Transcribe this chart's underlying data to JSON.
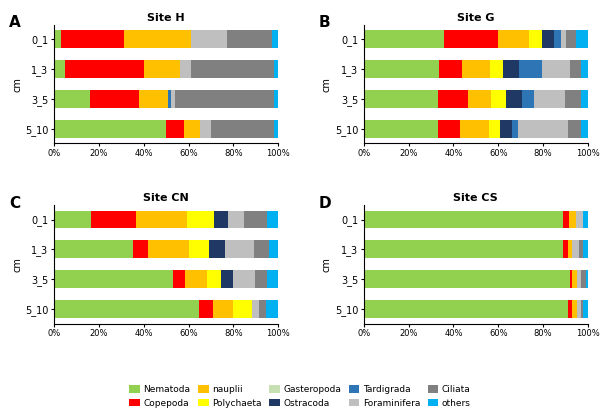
{
  "sites": [
    "Site H",
    "Site G",
    "Site CN",
    "Site CS"
  ],
  "panel_labels": [
    "A",
    "B",
    "C",
    "D"
  ],
  "depths": [
    "0_1",
    "1_3",
    "3_5",
    "5_10"
  ],
  "colors": {
    "Nematoda": "#92d050",
    "Copepoda": "#ff0000",
    "nauplii": "#ffc000",
    "Polychaeta": "#ffff00",
    "Gasteropoda": "#c6e0b4",
    "Ostracoda": "#1f3864",
    "Tardigrada": "#2e75b6",
    "Foraminifera": "#bfbfbf",
    "Ciliata": "#808080",
    "others": "#00b0f0"
  },
  "data": {
    "Site H": {
      "0_1": {
        "Nematoda": 3,
        "Copepoda": 28,
        "nauplii": 30,
        "Polychaeta": 0,
        "Gasteropoda": 0,
        "Ostracoda": 0,
        "Tardigrada": 0,
        "Foraminifera": 16,
        "Ciliata": 20,
        "others": 3
      },
      "1_3": {
        "Nematoda": 5,
        "Copepoda": 35,
        "nauplii": 16,
        "Polychaeta": 0,
        "Gasteropoda": 0,
        "Ostracoda": 0,
        "Tardigrada": 0,
        "Foraminifera": 5,
        "Ciliata": 37,
        "others": 2
      },
      "3_5": {
        "Nematoda": 16,
        "Copepoda": 22,
        "nauplii": 13,
        "Polychaeta": 0,
        "Gasteropoda": 0,
        "Ostracoda": 0,
        "Tardigrada": 1,
        "Foraminifera": 2,
        "Ciliata": 44,
        "others": 2
      },
      "5_10": {
        "Nematoda": 50,
        "Copepoda": 8,
        "nauplii": 7,
        "Polychaeta": 0,
        "Gasteropoda": 0,
        "Ostracoda": 0,
        "Tardigrada": 0,
        "Foraminifera": 5,
        "Ciliata": 28,
        "others": 2
      }
    },
    "Site G": {
      "0_1": {
        "Nematoda": 33,
        "Copepoda": 22,
        "nauplii": 13,
        "Polychaeta": 5,
        "Gasteropoda": 0,
        "Ostracoda": 5,
        "Tardigrada": 3,
        "Foraminifera": 2,
        "Ciliata": 4,
        "others": 5
      },
      "1_3": {
        "Nematoda": 33,
        "Copepoda": 10,
        "nauplii": 12,
        "Polychaeta": 6,
        "Gasteropoda": 0,
        "Ostracoda": 7,
        "Tardigrada": 10,
        "Foraminifera": 12,
        "Ciliata": 5,
        "others": 3
      },
      "3_5": {
        "Nematoda": 33,
        "Copepoda": 13,
        "nauplii": 10,
        "Polychaeta": 7,
        "Gasteropoda": 0,
        "Ostracoda": 7,
        "Tardigrada": 5,
        "Foraminifera": 14,
        "Ciliata": 7,
        "others": 3
      },
      "5_10": {
        "Nematoda": 33,
        "Copepoda": 10,
        "nauplii": 13,
        "Polychaeta": 5,
        "Gasteropoda": 0,
        "Ostracoda": 5,
        "Tardigrada": 3,
        "Foraminifera": 22,
        "Ciliata": 6,
        "others": 3
      }
    },
    "Site CN": {
      "0_1": {
        "Nematoda": 16,
        "Copepoda": 20,
        "nauplii": 22,
        "Polychaeta": 12,
        "Gasteropoda": 0,
        "Ostracoda": 6,
        "Tardigrada": 0,
        "Foraminifera": 7,
        "Ciliata": 10,
        "others": 5
      },
      "1_3": {
        "Nematoda": 35,
        "Copepoda": 7,
        "nauplii": 18,
        "Polychaeta": 9,
        "Gasteropoda": 0,
        "Ostracoda": 7,
        "Tardigrada": 0,
        "Foraminifera": 13,
        "Ciliata": 7,
        "others": 4
      },
      "3_5": {
        "Nematoda": 52,
        "Copepoda": 5,
        "nauplii": 10,
        "Polychaeta": 6,
        "Gasteropoda": 0,
        "Ostracoda": 5,
        "Tardigrada": 0,
        "Foraminifera": 10,
        "Ciliata": 5,
        "others": 5
      },
      "5_10": {
        "Nematoda": 60,
        "Copepoda": 6,
        "nauplii": 8,
        "Polychaeta": 8,
        "Gasteropoda": 0,
        "Ostracoda": 0,
        "Tardigrada": 0,
        "Foraminifera": 3,
        "Ciliata": 3,
        "others": 5
      }
    },
    "Site CS": {
      "0_1": {
        "Nematoda": 86,
        "Copepoda": 3,
        "nauplii": 3,
        "Polychaeta": 0,
        "Gasteropoda": 0,
        "Ostracoda": 0,
        "Tardigrada": 0,
        "Foraminifera": 3,
        "Ciliata": 0,
        "others": 2
      },
      "1_3": {
        "Nematoda": 88,
        "Copepoda": 2,
        "nauplii": 2,
        "Polychaeta": 0,
        "Gasteropoda": 0,
        "Ostracoda": 0,
        "Tardigrada": 0,
        "Foraminifera": 3,
        "Ciliata": 2,
        "others": 2
      },
      "3_5": {
        "Nematoda": 91,
        "Copepoda": 1,
        "nauplii": 2,
        "Polychaeta": 0,
        "Gasteropoda": 0,
        "Ostracoda": 0,
        "Tardigrada": 0,
        "Foraminifera": 2,
        "Ciliata": 2,
        "others": 1
      },
      "5_10": {
        "Nematoda": 90,
        "Copepoda": 2,
        "nauplii": 2,
        "Polychaeta": 0,
        "Gasteropoda": 0,
        "Ostracoda": 0,
        "Tardigrada": 0,
        "Foraminifera": 2,
        "Ciliata": 1,
        "others": 2
      }
    }
  },
  "taxa": [
    "Nematoda",
    "Copepoda",
    "nauplii",
    "Polychaeta",
    "Gasteropoda",
    "Ostracoda",
    "Tardigrada",
    "Foraminifera",
    "Ciliata",
    "others"
  ],
  "legend_order": [
    [
      "Nematoda",
      "Copepoda",
      "nauplii",
      "Polychaeta",
      "Gasteropoda"
    ],
    [
      "Ostracoda",
      "Tardigrada",
      "Foraminifera",
      "Ciliata",
      "others"
    ]
  ]
}
